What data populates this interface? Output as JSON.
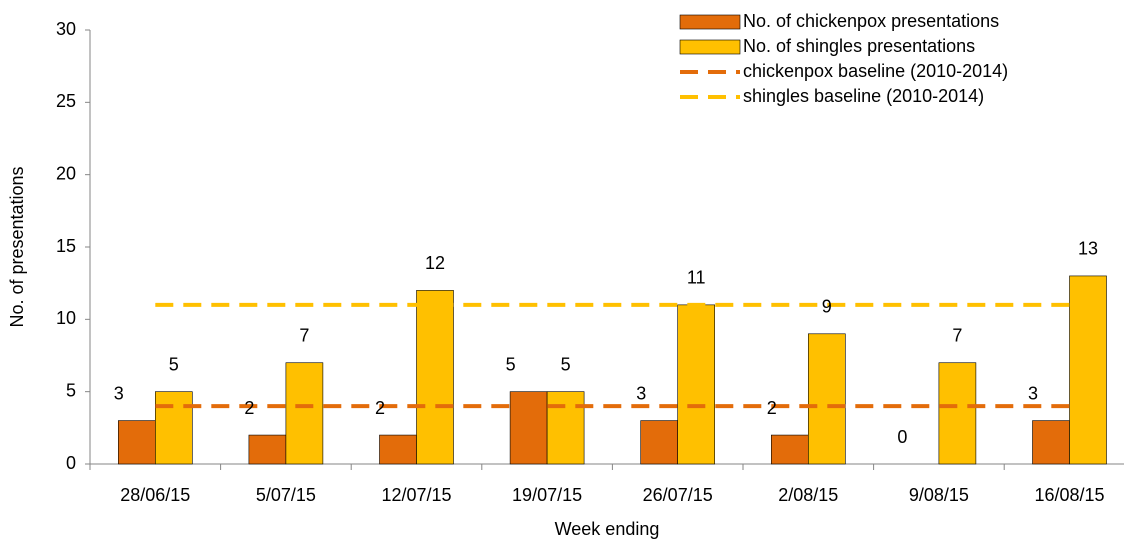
{
  "chart_data": {
    "type": "bar",
    "x_label": "Week ending",
    "y_label": "No. of presentations",
    "categories": [
      "28/06/15",
      "5/07/15",
      "12/07/15",
      "19/07/15",
      "26/07/15",
      "2/08/15",
      "9/08/15",
      "16/08/15"
    ],
    "series": [
      {
        "name": "No. of chickenpox presentations",
        "type": "bar",
        "color": "#E36C0A",
        "values": [
          3,
          2,
          2,
          5,
          3,
          2,
          0,
          3
        ]
      },
      {
        "name": "No. of shingles presentations",
        "type": "bar",
        "color": "#FFC000",
        "values": [
          5,
          7,
          12,
          5,
          11,
          9,
          7,
          13
        ]
      },
      {
        "name": "chickenpox baseline (2010-2014)",
        "type": "line",
        "dashed": true,
        "color": "#E36C0A",
        "values": [
          4,
          4,
          4,
          4,
          4,
          4,
          4,
          4
        ]
      },
      {
        "name": "shingles baseline (2010-2014)",
        "type": "line",
        "dashed": true,
        "color": "#FFC000",
        "values": [
          11,
          11,
          11,
          11,
          11,
          11,
          11,
          11
        ]
      }
    ],
    "data_labels": true,
    "ylim": [
      0,
      30
    ],
    "yticks": [
      0,
      5,
      10,
      15,
      20,
      25,
      30
    ],
    "grid": false,
    "legend": "top-right"
  }
}
